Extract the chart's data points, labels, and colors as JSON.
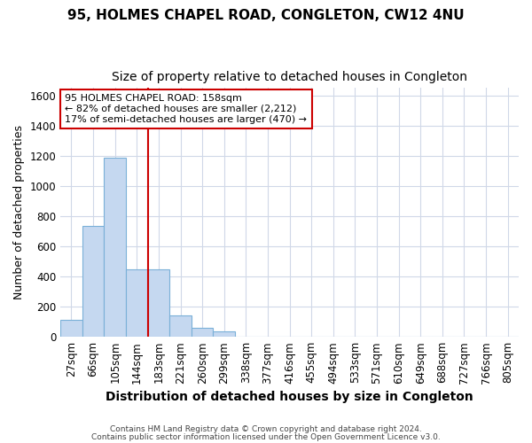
{
  "title1": "95, HOLMES CHAPEL ROAD, CONGLETON, CW12 4NU",
  "title2": "Size of property relative to detached houses in Congleton",
  "xlabel": "Distribution of detached houses by size in Congleton",
  "ylabel": "Number of detached properties",
  "bin_labels": [
    "27sqm",
    "66sqm",
    "105sqm",
    "144sqm",
    "183sqm",
    "221sqm",
    "260sqm",
    "299sqm",
    "338sqm",
    "377sqm",
    "416sqm",
    "455sqm",
    "494sqm",
    "533sqm",
    "571sqm",
    "610sqm",
    "649sqm",
    "688sqm",
    "727sqm",
    "766sqm",
    "805sqm"
  ],
  "bar_heights": [
    110,
    735,
    1190,
    445,
    445,
    140,
    60,
    35,
    0,
    0,
    0,
    0,
    0,
    0,
    0,
    0,
    0,
    0,
    0,
    0,
    0
  ],
  "bar_color": "#c5d8f0",
  "bar_edge_color": "#7ab0d8",
  "annotation_text": "95 HOLMES CHAPEL ROAD: 158sqm\n← 82% of detached houses are smaller (2,212)\n17% of semi-detached houses are larger (470) →",
  "footnote1": "Contains HM Land Registry data © Crown copyright and database right 2024.",
  "footnote2": "Contains public sector information licensed under the Open Government Licence v3.0.",
  "ylim": [
    0,
    1650
  ],
  "yticks": [
    0,
    200,
    400,
    600,
    800,
    1000,
    1200,
    1400,
    1600
  ],
  "bg_color": "#ffffff",
  "plot_bg_color": "#ffffff",
  "grid_color": "#d0d8e8",
  "red_line_color": "#cc0000",
  "ann_box_edge_color": "#cc0000",
  "ann_box_face_color": "#ffffff",
  "title1_fontsize": 11,
  "title2_fontsize": 10,
  "xlabel_fontsize": 10,
  "ylabel_fontsize": 9,
  "tick_fontsize": 8.5
}
